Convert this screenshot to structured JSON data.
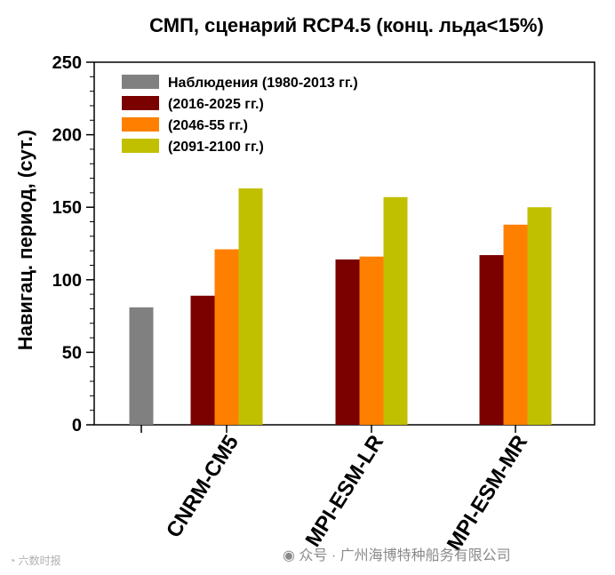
{
  "chart_data": {
    "type": "bar",
    "title": "СМП, сценарий RCP4.5 (конц. льда<15%)",
    "ylabel": "Навигац. период, (сут.)",
    "xlabel": "",
    "ylim": [
      0,
      250
    ],
    "yticks": [
      0,
      50,
      100,
      150,
      200,
      250
    ],
    "grid": false,
    "legend_position": "top-left",
    "categories": [
      "",
      "CNRM-CM5",
      "MPI-ESM-LR",
      "MPI-ESM-MR"
    ],
    "series": [
      {
        "name": "Наблюдения (1980-2013 гг.)",
        "color": "#808080",
        "values": [
          81,
          null,
          null,
          null
        ]
      },
      {
        "name": "(2016-2025 гг.)",
        "color": "#7b0000",
        "values": [
          null,
          89,
          114,
          117
        ]
      },
      {
        "name": "(2046-55 гг.)",
        "color": "#ff8000",
        "values": [
          null,
          121,
          116,
          138
        ]
      },
      {
        "name": "(2091-2100 гг.)",
        "color": "#c0c000",
        "values": [
          null,
          163,
          157,
          150
        ]
      }
    ]
  },
  "watermark": {
    "left_text": "六数时报",
    "right_text": "众号 · 广州海博特种船务有限公司"
  }
}
